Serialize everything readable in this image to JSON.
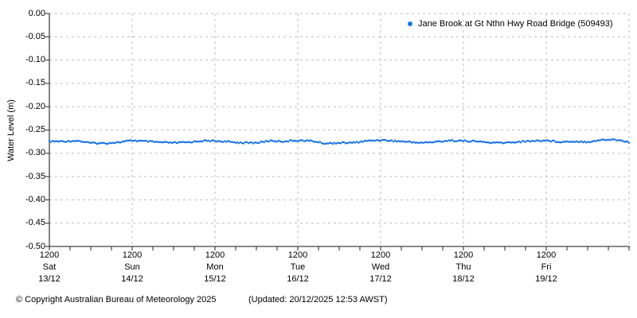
{
  "colors": {
    "series": "#1b74e8",
    "grid": "#bdbdbd",
    "axis": "#444444",
    "text": "#000000",
    "background": "#ffffff"
  },
  "legend": {
    "label": "Jane Brook at Gt Nthn Hwy Road Bridge (509493)"
  },
  "footer": {
    "copyright": "© Copyright Australian Bureau of Meteorology 2025",
    "updated": "(Updated: 20/12/2025 12:53 AWST)"
  },
  "chart_data": {
    "type": "scatter",
    "title": "",
    "xlabel": "",
    "ylabel": "Water Level (m)",
    "ylim": [
      -0.5,
      0.0
    ],
    "ytick_step": 0.05,
    "yticks": [
      "0.00",
      "-0.05",
      "-0.10",
      "-0.15",
      "-0.20",
      "-0.25",
      "-0.30",
      "-0.35",
      "-0.40",
      "-0.45",
      "-0.50"
    ],
    "grid": true,
    "legend_position": "top-right",
    "x_hours_range": [
      0,
      168
    ],
    "x_minor_tick_hours": 6,
    "x_gridline_every_hours": 24,
    "xticks": [
      {
        "hour": 0,
        "time": "1200",
        "day": "Sat",
        "date": "13/12"
      },
      {
        "hour": 24,
        "time": "1200",
        "day": "Sun",
        "date": "14/12"
      },
      {
        "hour": 48,
        "time": "1200",
        "day": "Mon",
        "date": "15/12"
      },
      {
        "hour": 72,
        "time": "1200",
        "day": "Tue",
        "date": "16/12"
      },
      {
        "hour": 96,
        "time": "1200",
        "day": "Wed",
        "date": "17/12"
      },
      {
        "hour": 120,
        "time": "1200",
        "day": "Thu",
        "date": "18/12"
      },
      {
        "hour": 144,
        "time": "1200",
        "day": "Fri",
        "date": "19/12"
      }
    ],
    "series": [
      {
        "name": "Jane Brook at Gt Nthn Hwy Road Bridge (509493)",
        "x_hours": [
          0,
          4,
          8,
          12,
          16,
          20,
          24,
          28,
          32,
          36,
          40,
          44,
          48,
          52,
          56,
          60,
          64,
          68,
          72,
          76,
          80,
          84,
          88,
          92,
          96,
          100,
          104,
          108,
          112,
          116,
          120,
          124,
          128,
          132,
          136,
          140,
          144,
          148,
          152,
          156,
          160,
          164,
          168
        ],
        "values": [
          -0.2745,
          -0.2745,
          -0.273,
          -0.278,
          -0.2785,
          -0.2765,
          -0.2725,
          -0.2745,
          -0.2765,
          -0.2775,
          -0.2765,
          -0.2735,
          -0.2735,
          -0.2755,
          -0.2775,
          -0.2775,
          -0.273,
          -0.2745,
          -0.2725,
          -0.2735,
          -0.279,
          -0.2775,
          -0.2775,
          -0.2735,
          -0.2715,
          -0.2735,
          -0.2755,
          -0.2775,
          -0.2755,
          -0.2725,
          -0.2735,
          -0.2745,
          -0.2775,
          -0.2775,
          -0.2755,
          -0.2735,
          -0.2725,
          -0.2755,
          -0.2745,
          -0.2755,
          -0.2715,
          -0.2705,
          -0.2765
        ]
      }
    ]
  }
}
